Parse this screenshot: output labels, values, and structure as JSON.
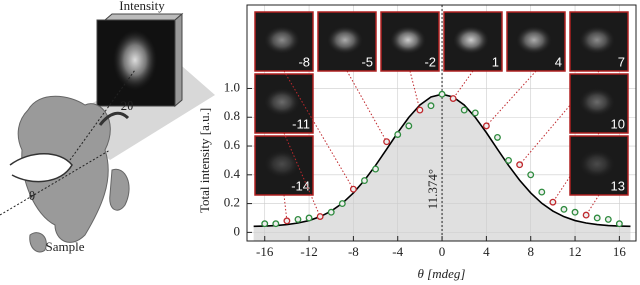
{
  "chart_data": {
    "type": "scatter",
    "xlabel": "θ [mdeg]",
    "ylabel": "Total intensity [a.u.]",
    "xlim": [
      -17.6,
      17.5
    ],
    "ylim": [
      -0.06,
      1.58
    ],
    "xticks": [
      -16,
      -12,
      -8,
      -4,
      0,
      4,
      8,
      12,
      16
    ],
    "yticks": [
      0,
      0.2,
      0.4,
      0.6,
      0.8,
      {
        "value": 1,
        "label": "1.0"
      }
    ],
    "grid": true,
    "series": [
      {
        "color": "#2e8b3e",
        "x": [
          -16,
          -15,
          -13,
          -12,
          -10,
          -9,
          -7,
          -6,
          -4,
          -3,
          -1,
          0,
          2,
          3,
          5,
          6,
          8,
          9,
          11,
          12,
          14,
          15,
          16
        ],
        "values": [
          0.06,
          0.06,
          0.09,
          0.1,
          0.14,
          0.2,
          0.36,
          0.44,
          0.68,
          0.74,
          0.88,
          0.96,
          0.85,
          0.83,
          0.66,
          0.5,
          0.4,
          0.28,
          0.16,
          0.14,
          0.1,
          0.09,
          0.06
        ]
      },
      {
        "color": "#c0282d",
        "x": [
          -14,
          -11,
          -8,
          -5,
          -2,
          1,
          4,
          7,
          10,
          13
        ],
        "values": [
          0.08,
          0.11,
          0.3,
          0.63,
          0.85,
          0.93,
          0.74,
          0.47,
          0.21,
          0.12
        ]
      },
      {
        "type": "line",
        "color": "#000000",
        "x": [
          -17,
          -16,
          -15,
          -14,
          -13,
          -12,
          -11,
          -10,
          -9,
          -8,
          -7,
          -6,
          -5,
          -4,
          -3,
          -2,
          -1,
          0,
          1,
          2,
          3,
          4,
          5,
          6,
          7,
          8,
          9,
          10,
          11,
          12,
          13,
          14,
          15,
          16,
          17
        ],
        "values": [
          0.042,
          0.044,
          0.047,
          0.054,
          0.065,
          0.082,
          0.109,
          0.148,
          0.202,
          0.274,
          0.362,
          0.465,
          0.578,
          0.693,
          0.799,
          0.885,
          0.941,
          0.96,
          0.941,
          0.885,
          0.799,
          0.693,
          0.578,
          0.465,
          0.362,
          0.274,
          0.202,
          0.148,
          0.109,
          0.082,
          0.065,
          0.054,
          0.047,
          0.044,
          0.042
        ]
      }
    ],
    "annotation": {
      "text": "11.374°",
      "x": 0
    },
    "insets": [
      "-14",
      "-11",
      "-8",
      "-5",
      "-2",
      "1",
      "4",
      "7",
      "10",
      "13"
    ]
  },
  "illustration": {
    "detector": "Intensity",
    "scatter_angle": "2θ",
    "rotation": "θ",
    "sample": "Sample"
  }
}
